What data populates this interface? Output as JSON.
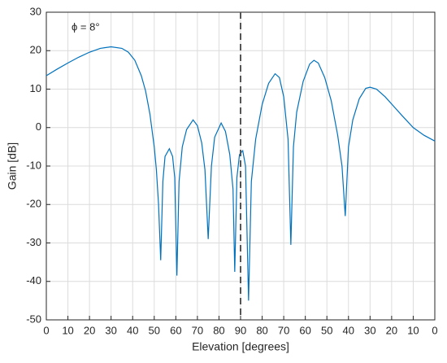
{
  "chart_data": {
    "type": "line",
    "annotation": "ϕ = 8°",
    "xlabel": "Elevation [degrees]",
    "ylabel": "Gain [dB]",
    "xlim": [
      0,
      180
    ],
    "ylim": [
      -50,
      30
    ],
    "xticks": [
      0,
      10,
      20,
      30,
      40,
      50,
      60,
      70,
      80,
      90,
      {
        "value": 100,
        "label": "80"
      },
      {
        "value": 110,
        "label": "70"
      },
      {
        "value": 120,
        "label": "60"
      },
      {
        "value": 130,
        "label": "50"
      },
      {
        "value": 140,
        "label": "40"
      },
      {
        "value": 150,
        "label": "30"
      },
      {
        "value": 160,
        "label": "20"
      },
      {
        "value": 170,
        "label": "10"
      },
      {
        "value": 180,
        "label": "0"
      }
    ],
    "yticks": [
      30,
      20,
      10,
      0,
      -10,
      -20,
      -30,
      -40,
      -50
    ],
    "grid": true,
    "vline": 90,
    "series": [
      {
        "color": "#0072bd",
        "x": [
          0,
          5,
          10,
          15,
          20,
          25,
          30,
          35,
          38,
          41,
          44,
          46,
          48,
          50,
          51,
          52,
          53,
          54,
          55,
          57,
          58.5,
          59.5,
          60.5,
          61.5,
          63,
          65,
          68,
          70,
          72,
          73.5,
          75,
          76.5,
          78,
          81,
          83,
          85,
          86.5,
          87.3,
          88.3,
          89.5,
          91,
          92.3,
          93.7,
          95,
          97,
          100,
          103,
          106,
          108,
          110,
          112,
          113.3,
          114.5,
          116,
          119,
          122,
          124,
          126,
          129,
          132,
          135,
          137,
          138.5,
          140,
          142,
          145,
          148,
          150,
          153,
          157,
          161,
          165,
          170,
          175,
          180
        ],
        "values": [
          13.5,
          15.2,
          16.8,
          18.3,
          19.6,
          20.6,
          21,
          20.6,
          19.6,
          17.5,
          13.5,
          9.5,
          3.5,
          -5,
          -11,
          -20,
          -34.5,
          -14,
          -7.5,
          -5.5,
          -7.5,
          -13,
          -38.5,
          -14,
          -5,
          -0.5,
          2,
          0.5,
          -4,
          -11,
          -29,
          -10,
          -2.5,
          1.2,
          -1,
          -7,
          -16,
          -37.5,
          -13,
          -7,
          -6,
          -10,
          -45,
          -14,
          -3,
          6,
          11.5,
          14,
          13,
          8,
          -3,
          -30.5,
          -5,
          4,
          12,
          16.5,
          17.5,
          16.8,
          13,
          7,
          -2,
          -10,
          -23,
          -5,
          2,
          7.5,
          10.2,
          10.5,
          10,
          8,
          5.5,
          3,
          0,
          -2,
          -3.5
        ]
      }
    ]
  }
}
